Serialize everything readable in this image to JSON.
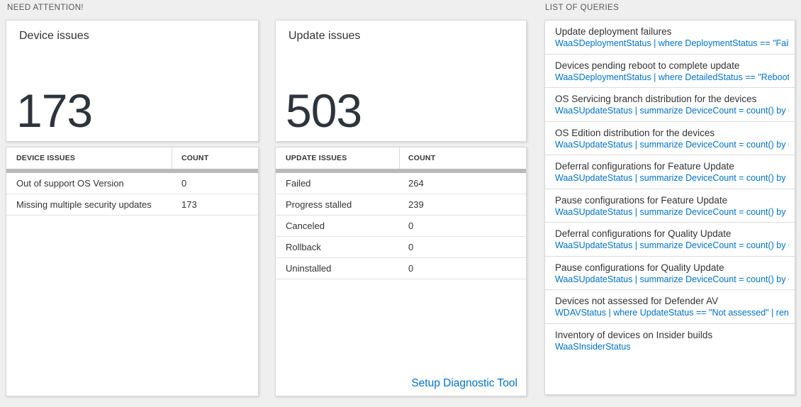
{
  "page": {
    "background_color": "#efefef",
    "accent_blue": "#0072c6",
    "header_gray_bar_color": "#b9b9b9",
    "big_number_color": "#2d343c"
  },
  "need_attention": {
    "label": "NEED ATTENTION!",
    "device_tile": {
      "title": "Device issues",
      "count": "173"
    },
    "update_tile": {
      "title": "Update issues",
      "count": "503"
    },
    "device_table": {
      "headers": [
        "DEVICE ISSUES",
        "COUNT"
      ],
      "rows": [
        {
          "issue": "Out of support OS Version",
          "count": "0"
        },
        {
          "issue": "Missing multiple security updates",
          "count": "173"
        }
      ]
    },
    "update_table": {
      "headers": [
        "UPDATE ISSUES",
        "COUNT"
      ],
      "rows": [
        {
          "issue": "Failed",
          "count": "264"
        },
        {
          "issue": "Progress stalled",
          "count": "239"
        },
        {
          "issue": "Canceled",
          "count": "0"
        },
        {
          "issue": "Rollback",
          "count": "0"
        },
        {
          "issue": "Uninstalled",
          "count": "0"
        }
      ],
      "footer_link": "Setup Diagnostic Tool"
    }
  },
  "queries": {
    "label": "LIST OF QUERIES",
    "items": [
      {
        "title": "Update deployment failures",
        "query": "WaaSDeploymentStatus | where DeploymentStatus == \"Failed\" |..."
      },
      {
        "title": "Devices pending reboot to complete update",
        "query": "WaaSDeploymentStatus | where DetailedStatus == \"Reboot pend..."
      },
      {
        "title": "OS Servicing branch distribution for the devices",
        "query": "WaaSUpdateStatus | summarize DeviceCount = count() by OSSer..."
      },
      {
        "title": "OS Edition distribution for the devices",
        "query": "WaaSUpdateStatus | summarize DeviceCount = count() by OSEdit..."
      },
      {
        "title": "Deferral configurations for Feature Update",
        "query": "WaaSUpdateStatus | summarize DeviceCount = count() by Featur..."
      },
      {
        "title": "Pause configurations for Feature Update",
        "query": "WaaSUpdateStatus | summarize DeviceCount = count() by Featur..."
      },
      {
        "title": "Deferral configurations for Quality Update",
        "query": "WaaSUpdateStatus | summarize DeviceCount = count() by Qualit..."
      },
      {
        "title": "Pause configurations for Quality Update",
        "query": "WaaSUpdateStatus | summarize DeviceCount = count() by Qualit..."
      },
      {
        "title": "Devices not assessed for Defender AV",
        "query": "WDAVStatus | where UpdateStatus == \"Not assessed\" | render ta..."
      },
      {
        "title": "Inventory of devices on Insider builds",
        "query": "WaaSInsiderStatus"
      }
    ]
  }
}
